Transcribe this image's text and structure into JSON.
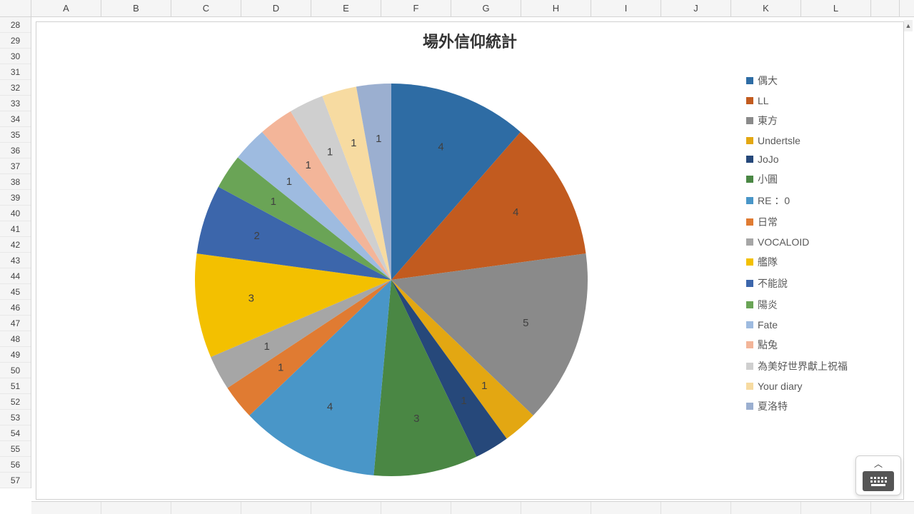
{
  "columns": [
    "A",
    "B",
    "C",
    "D",
    "E",
    "F",
    "G",
    "H",
    "I",
    "J",
    "K",
    "L"
  ],
  "row_start": 28,
  "row_end": 57,
  "chart": {
    "type": "pie",
    "title": "場外信仰統計",
    "title_fontsize": 22,
    "label_fontsize": 15,
    "legend_fontsize": 14,
    "background_color": "#ffffff",
    "border_color": "#d0d0d0",
    "label_color": "#404040",
    "legend_text_color": "#595959",
    "series": [
      {
        "label": "偶大",
        "value": 4,
        "color": "#2e6ca4"
      },
      {
        "label": "LL",
        "value": 4,
        "color": "#c25b1f"
      },
      {
        "label": "東方",
        "value": 5,
        "color": "#8a8a8a"
      },
      {
        "label": "Undertsle",
        "value": 1,
        "color": "#e3a712"
      },
      {
        "label": "JoJo",
        "value": 1,
        "color": "#26487a"
      },
      {
        "label": "小圓",
        "value": 3,
        "color": "#4a8744"
      },
      {
        "label": "RE ：0",
        "value": 4,
        "color": "#4996c8"
      },
      {
        "label": "日常",
        "value": 1,
        "color": "#e07b32"
      },
      {
        "label": "VOCALOID",
        "value": 1,
        "color": "#a6a6a6"
      },
      {
        "label": "艦隊",
        "value": 3,
        "color": "#f3c000"
      },
      {
        "label": "不能說",
        "value": 2,
        "color": "#3c66ab"
      },
      {
        "label": "陽炎",
        "value": 1,
        "color": "#6aa456"
      },
      {
        "label": "Fate",
        "value": 1,
        "color": "#9ebbe0"
      },
      {
        "label": "點兔",
        "value": 1,
        "color": "#f3b599"
      },
      {
        "label": "為美好世界獻上祝福",
        "value": 1,
        "color": "#cfcfcf"
      },
      {
        "label": "Your diary",
        "value": 1,
        "color": "#f7dba1"
      },
      {
        "label": "夏洛特",
        "value": 1,
        "color": "#9bafd0"
      }
    ],
    "label_radius_ratio": 0.72
  }
}
